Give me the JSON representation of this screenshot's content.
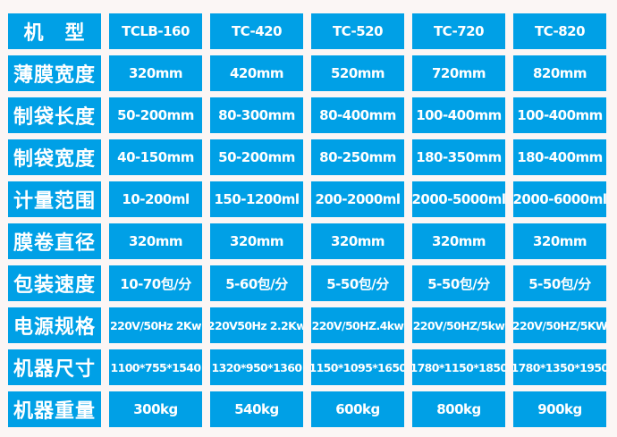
{
  "rows": [
    {
      "label": "机　型",
      "values": [
        "TCLB-160",
        "TC-420",
        "TC-520",
        "TC-720",
        "TC-820"
      ]
    },
    {
      "label": "薄膜宽度",
      "values": [
        "320mm",
        "420mm",
        "520mm",
        "720mm",
        "820mm"
      ]
    },
    {
      "label": "制袋长度",
      "values": [
        "50-200mm",
        "80-300mm",
        "80-400mm",
        "100-400mm",
        "100-400mm"
      ]
    },
    {
      "label": "制袋宽度",
      "values": [
        "40-150mm",
        "50-200mm",
        "80-250mm",
        "180-350mm",
        "180-400mm"
      ]
    },
    {
      "label": "计量范围",
      "values": [
        "10-200ml",
        "150-1200ml",
        "200-2000ml",
        "2000-5000ml",
        "2000-6000ml"
      ]
    },
    {
      "label": "膜卷直径",
      "values": [
        "320mm",
        "320mm",
        "320mm",
        "320mm",
        "320mm"
      ]
    },
    {
      "label": "包装速度",
      "values": [
        "10-70包/分",
        "5-60包/分",
        "5-50包/分",
        "5-50包/分",
        "5-50包/分"
      ]
    },
    {
      "label": "电源规格",
      "values": [
        "220V/50Hz 2Kw",
        "220V50Hz 2.2Kw",
        "220V/50HZ.4kw",
        "220V/50HZ/5kw",
        "220V/50HZ/5KW"
      ]
    },
    {
      "label": "机器尺寸",
      "values": [
        "1100*755*1540",
        "1320*950*1360",
        "1150*1095*1650",
        "1780*1150*1850",
        "1780*1350*1950"
      ]
    },
    {
      "label": "机器重量",
      "values": [
        "300kg",
        "540kg",
        "600kg",
        "800kg",
        "900kg"
      ]
    }
  ],
  "colors": {
    "cell": "#00a0e6",
    "background": "#fbf6f5",
    "text": "#ffffff"
  }
}
